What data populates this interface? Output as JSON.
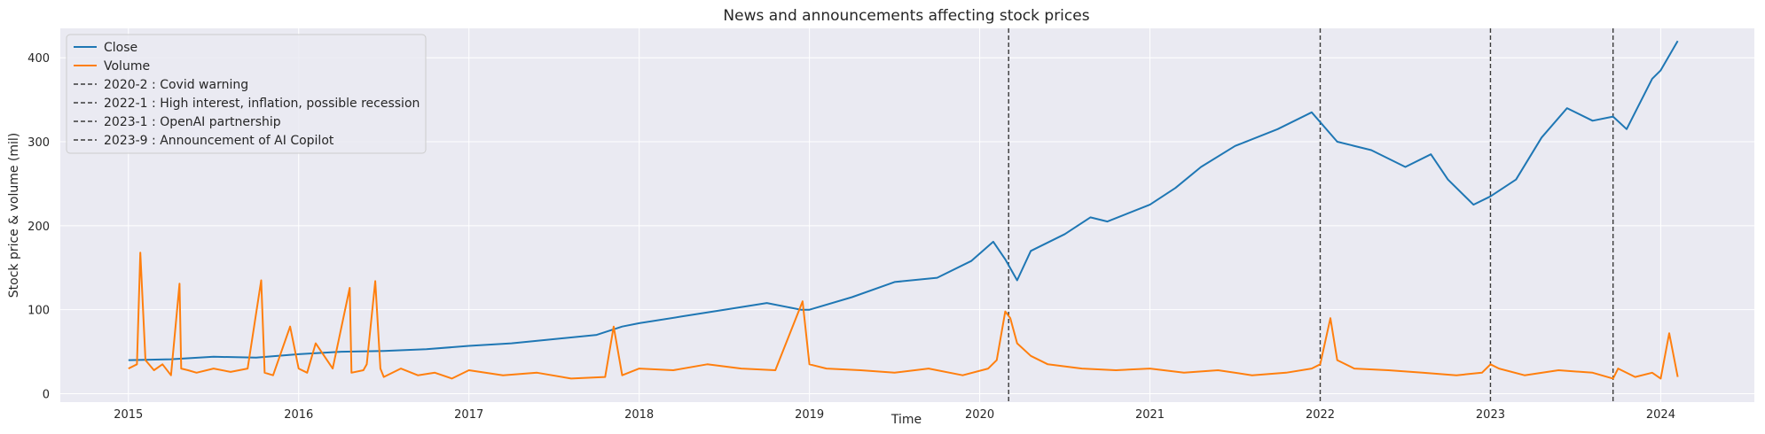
{
  "chart_data": {
    "type": "line",
    "title": "News and announcements affecting stock prices",
    "xlabel": "Time",
    "ylabel": "Stock price & volume (mil)",
    "xlim": [
      2014.6,
      2024.55
    ],
    "ylim": [
      -10,
      435
    ],
    "x_ticks": [
      2015,
      2016,
      2017,
      2018,
      2019,
      2020,
      2021,
      2022,
      2023,
      2024
    ],
    "x_tick_labels": [
      "2015",
      "2016",
      "2017",
      "2018",
      "2019",
      "2020",
      "2021",
      "2022",
      "2023",
      "2024"
    ],
    "y_ticks": [
      0,
      100,
      200,
      300,
      400
    ],
    "y_tick_labels": [
      "0",
      "100",
      "200",
      "300",
      "400"
    ],
    "grid": true,
    "legend_position": "upper-left",
    "colors": {
      "background": "#eaeaf2",
      "grid": "#ffffff",
      "close": "#1f77b4",
      "volume": "#ff7f0e",
      "event": "#3a3a3a"
    },
    "series": [
      {
        "name": "Close",
        "color": "#1f77b4",
        "x": [
          2015.0,
          2015.25,
          2015.5,
          2015.75,
          2016.0,
          2016.25,
          2016.5,
          2016.75,
          2017.0,
          2017.25,
          2017.5,
          2017.75,
          2017.9,
          2018.0,
          2018.25,
          2018.5,
          2018.75,
          2018.95,
          2019.0,
          2019.25,
          2019.5,
          2019.75,
          2019.95,
          2020.08,
          2020.15,
          2020.22,
          2020.3,
          2020.5,
          2020.65,
          2020.75,
          2021.0,
          2021.15,
          2021.3,
          2021.5,
          2021.75,
          2021.95,
          2022.1,
          2022.3,
          2022.5,
          2022.65,
          2022.75,
          2022.9,
          2023.0,
          2023.15,
          2023.3,
          2023.45,
          2023.6,
          2023.72,
          2023.8,
          2023.95,
          2024.0,
          2024.1
        ],
        "y": [
          40,
          41,
          44,
          43,
          47,
          50,
          51,
          53,
          57,
          60,
          65,
          70,
          80,
          84,
          92,
          100,
          108,
          100,
          100,
          115,
          133,
          138,
          158,
          181,
          160,
          135,
          170,
          190,
          210,
          205,
          225,
          245,
          270,
          295,
          315,
          335,
          300,
          290,
          270,
          285,
          255,
          225,
          235,
          255,
          305,
          340,
          325,
          330,
          315,
          375,
          385,
          420
        ]
      },
      {
        "name": "Volume",
        "color": "#ff7f0e",
        "x": [
          2015.0,
          2015.05,
          2015.07,
          2015.1,
          2015.15,
          2015.2,
          2015.25,
          2015.3,
          2015.31,
          2015.35,
          2015.4,
          2015.5,
          2015.6,
          2015.7,
          2015.78,
          2015.8,
          2015.85,
          2015.95,
          2016.0,
          2016.05,
          2016.1,
          2016.2,
          2016.3,
          2016.31,
          2016.38,
          2016.4,
          2016.45,
          2016.48,
          2016.5,
          2016.6,
          2016.7,
          2016.8,
          2016.9,
          2017.0,
          2017.2,
          2017.4,
          2017.6,
          2017.8,
          2017.85,
          2017.9,
          2018.0,
          2018.2,
          2018.4,
          2018.6,
          2018.8,
          2018.96,
          2019.0,
          2019.1,
          2019.3,
          2019.5,
          2019.7,
          2019.9,
          2020.05,
          2020.1,
          2020.15,
          2020.18,
          2020.22,
          2020.3,
          2020.4,
          2020.6,
          2020.8,
          2021.0,
          2021.2,
          2021.4,
          2021.6,
          2021.8,
          2021.95,
          2022.0,
          2022.06,
          2022.1,
          2022.2,
          2022.4,
          2022.6,
          2022.8,
          2022.95,
          2023.0,
          2023.05,
          2023.2,
          2023.4,
          2023.6,
          2023.72,
          2023.75,
          2023.85,
          2023.95,
          2024.0,
          2024.05,
          2024.1
        ],
        "y": [
          30,
          35,
          168,
          40,
          28,
          35,
          22,
          131,
          30,
          28,
          25,
          30,
          26,
          30,
          135,
          25,
          22,
          80,
          30,
          25,
          60,
          30,
          126,
          25,
          28,
          35,
          134,
          30,
          20,
          30,
          22,
          25,
          18,
          28,
          22,
          25,
          18,
          20,
          80,
          22,
          30,
          28,
          35,
          30,
          28,
          110,
          35,
          30,
          28,
          25,
          30,
          22,
          30,
          40,
          98,
          90,
          60,
          45,
          35,
          30,
          28,
          30,
          25,
          28,
          22,
          25,
          30,
          35,
          90,
          40,
          30,
          28,
          25,
          22,
          25,
          35,
          30,
          22,
          28,
          25,
          18,
          30,
          20,
          25,
          18,
          72,
          20
        ]
      }
    ],
    "events": [
      {
        "x": 2020.17,
        "label": "2020-2 : Covid warning"
      },
      {
        "x": 2022.0,
        "label": "2022-1 : High interest, inflation, possible recession"
      },
      {
        "x": 2023.0,
        "label": "2023-1 : OpenAI partnership"
      },
      {
        "x": 2023.72,
        "label": "2023-9 : Announcement of AI Copilot"
      }
    ]
  }
}
